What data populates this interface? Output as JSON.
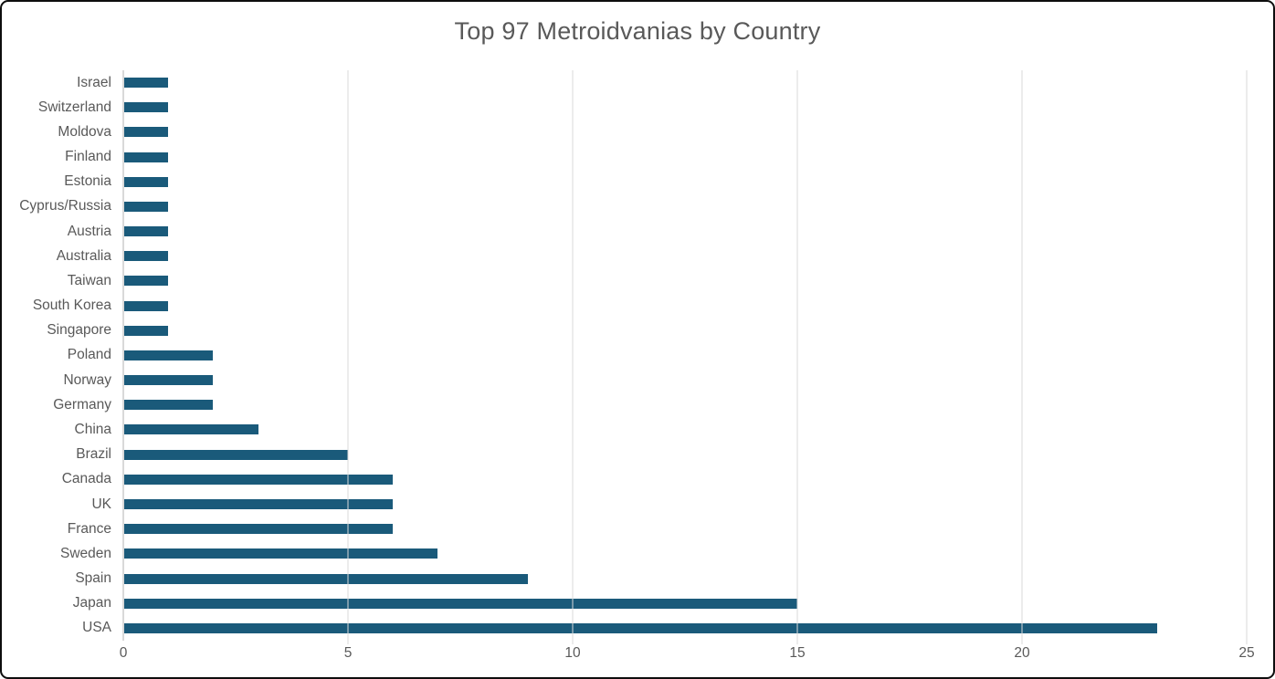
{
  "title": "Top 97 Metroidvanias by Country",
  "colors": {
    "bar": "#1A5A7A",
    "gridline": "#D9D9D9",
    "axis_line": "#D9D9D9",
    "text": "#595959",
    "frame_border": "#0D0D0D",
    "background": "#FFFFFF"
  },
  "chart_data": {
    "type": "bar",
    "orientation": "horizontal",
    "title": "Top 97 Metroidvanias by Country",
    "categories": [
      "Israel",
      "Switzerland",
      "Moldova",
      "Finland",
      "Estonia",
      "Cyprus/Russia",
      "Austria",
      "Australia",
      "Taiwan",
      "South Korea",
      "Singapore",
      "Poland",
      "Norway",
      "Germany",
      "China",
      "Brazil",
      "Canada",
      "UK",
      "France",
      "Sweden",
      "Spain",
      "Japan",
      "USA"
    ],
    "values": [
      1,
      1,
      1,
      1,
      1,
      1,
      1,
      1,
      1,
      1,
      1,
      2,
      2,
      2,
      3,
      5,
      6,
      6,
      6,
      7,
      9,
      15,
      23
    ],
    "xlabel": "",
    "ylabel": "",
    "xlim": [
      0,
      25
    ],
    "x_ticks": [
      0,
      5,
      10,
      15,
      20,
      25
    ],
    "grid": true,
    "legend": "none"
  }
}
